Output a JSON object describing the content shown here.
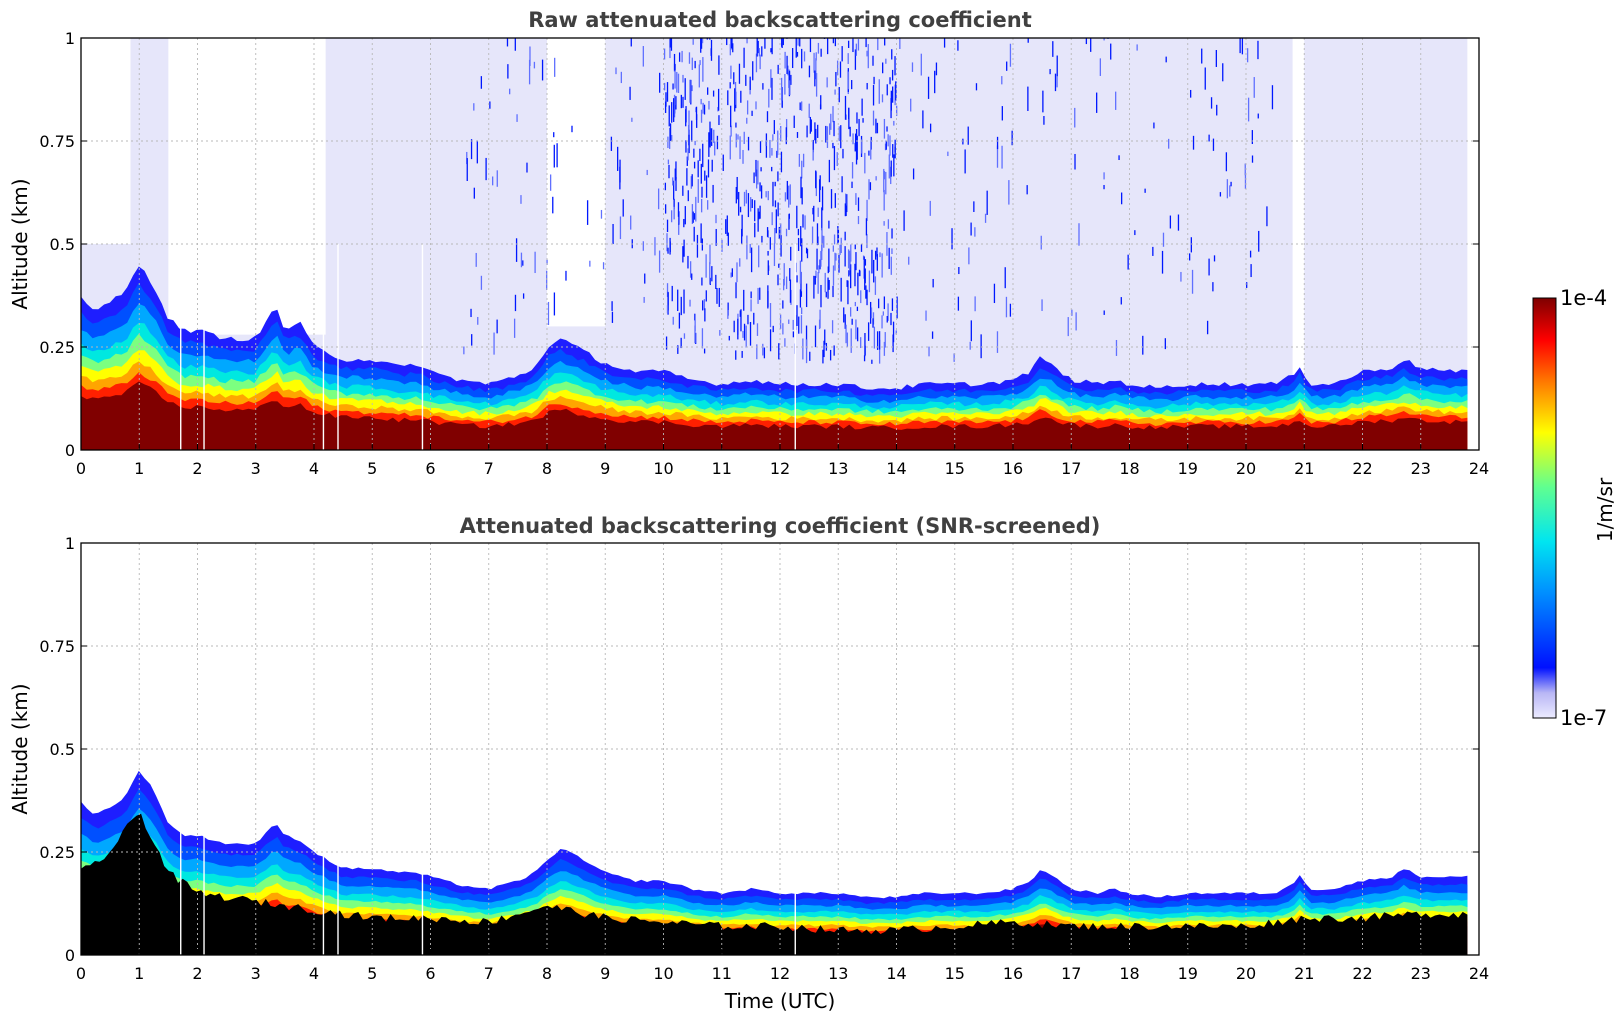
{
  "figure": {
    "colorbar": {
      "label": "1/m/sr",
      "max_label": "1e-4",
      "min_label": "1e-7",
      "scale": "log",
      "colormap": "jet (light lavender low end to dark red high end)"
    }
  },
  "chart_data": [
    {
      "type": "heatmap",
      "title": "Raw attenuated backscattering coefficient",
      "xlabel": "",
      "ylabel": "Altitude (km)",
      "xlim": [
        0,
        24
      ],
      "ylim": [
        0,
        1
      ],
      "x_ticks": [
        0,
        1,
        2,
        3,
        4,
        5,
        6,
        7,
        8,
        9,
        10,
        11,
        12,
        13,
        14,
        15,
        16,
        17,
        18,
        19,
        20,
        21,
        22,
        23,
        24
      ],
      "y_ticks": [
        0,
        0.25,
        0.5,
        0.75,
        1
      ],
      "y_tick_labels": [
        "0",
        "0.25",
        "0.5",
        "0.75",
        "1"
      ],
      "grid": true,
      "data_end_hour": 23.8,
      "boundary_layer_top_km": [
        [
          0,
          0.37
        ],
        [
          0.25,
          0.34
        ],
        [
          0.5,
          0.36
        ],
        [
          0.75,
          0.38
        ],
        [
          1,
          0.45
        ],
        [
          1.25,
          0.4
        ],
        [
          1.5,
          0.32
        ],
        [
          1.75,
          0.29
        ],
        [
          2,
          0.29
        ],
        [
          2.5,
          0.27
        ],
        [
          3,
          0.27
        ],
        [
          3.35,
          0.35
        ],
        [
          3.5,
          0.29
        ],
        [
          3.75,
          0.31
        ],
        [
          4,
          0.25
        ],
        [
          4.5,
          0.22
        ],
        [
          5,
          0.22
        ],
        [
          5.5,
          0.2
        ],
        [
          5.75,
          0.21
        ],
        [
          6,
          0.19
        ],
        [
          6.5,
          0.17
        ],
        [
          7,
          0.16
        ],
        [
          7.5,
          0.18
        ],
        [
          7.8,
          0.2
        ],
        [
          8,
          0.25
        ],
        [
          8.25,
          0.27
        ],
        [
          8.5,
          0.25
        ],
        [
          9,
          0.21
        ],
        [
          9.5,
          0.19
        ],
        [
          10,
          0.19
        ],
        [
          10.5,
          0.17
        ],
        [
          11,
          0.16
        ],
        [
          11.5,
          0.17
        ],
        [
          12,
          0.16
        ],
        [
          12.5,
          0.16
        ],
        [
          13,
          0.16
        ],
        [
          13.5,
          0.15
        ],
        [
          14,
          0.15
        ],
        [
          14.5,
          0.16
        ],
        [
          15,
          0.16
        ],
        [
          15.5,
          0.16
        ],
        [
          16,
          0.17
        ],
        [
          16.3,
          0.19
        ],
        [
          16.5,
          0.23
        ],
        [
          16.7,
          0.2
        ],
        [
          17,
          0.17
        ],
        [
          17.5,
          0.16
        ],
        [
          17.7,
          0.17
        ],
        [
          18,
          0.16
        ],
        [
          18.5,
          0.15
        ],
        [
          19,
          0.16
        ],
        [
          19.5,
          0.16
        ],
        [
          20,
          0.16
        ],
        [
          20.5,
          0.16
        ],
        [
          20.8,
          0.18
        ],
        [
          20.9,
          0.21
        ],
        [
          21.1,
          0.16
        ],
        [
          21.5,
          0.16
        ],
        [
          22,
          0.19
        ],
        [
          22.5,
          0.2
        ],
        [
          22.7,
          0.22
        ],
        [
          23,
          0.2
        ],
        [
          23.5,
          0.19
        ],
        [
          23.8,
          0.19
        ]
      ],
      "noise_region_top_km": 1,
      "notes": "Noise speckle (blue) in upper levels mostly between 10 and 14 UTC; dark red near-surface layer below ~0.1 km"
    },
    {
      "type": "heatmap",
      "title": "Attenuated backscattering coefficient (SNR-screened)",
      "xlabel": "Time (UTC)",
      "ylabel": "Altitude (km)",
      "xlim": [
        0,
        24
      ],
      "ylim": [
        0,
        1
      ],
      "x_ticks": [
        0,
        1,
        2,
        3,
        4,
        5,
        6,
        7,
        8,
        9,
        10,
        11,
        12,
        13,
        14,
        15,
        16,
        17,
        18,
        19,
        20,
        21,
        22,
        23,
        24
      ],
      "y_ticks": [
        0,
        0.25,
        0.5,
        0.75,
        1
      ],
      "y_tick_labels": [
        "0",
        "0.25",
        "0.5",
        "0.75",
        "1"
      ],
      "grid": true,
      "data_end_hour": 23.8,
      "boundary_layer_top_km": [
        [
          0,
          0.37
        ],
        [
          0.25,
          0.34
        ],
        [
          0.5,
          0.36
        ],
        [
          0.75,
          0.38
        ],
        [
          1,
          0.45
        ],
        [
          1.25,
          0.4
        ],
        [
          1.5,
          0.32
        ],
        [
          1.75,
          0.29
        ],
        [
          2,
          0.29
        ],
        [
          2.5,
          0.27
        ],
        [
          3,
          0.27
        ],
        [
          3.35,
          0.32
        ],
        [
          3.5,
          0.29
        ],
        [
          3.75,
          0.28
        ],
        [
          4,
          0.25
        ],
        [
          4.5,
          0.21
        ],
        [
          5,
          0.21
        ],
        [
          5.5,
          0.2
        ],
        [
          5.75,
          0.2
        ],
        [
          6,
          0.19
        ],
        [
          6.5,
          0.17
        ],
        [
          7,
          0.16
        ],
        [
          7.5,
          0.18
        ],
        [
          7.8,
          0.2
        ],
        [
          8,
          0.23
        ],
        [
          8.25,
          0.26
        ],
        [
          8.5,
          0.24
        ],
        [
          9,
          0.2
        ],
        [
          9.5,
          0.18
        ],
        [
          10,
          0.18
        ],
        [
          10.5,
          0.16
        ],
        [
          11,
          0.15
        ],
        [
          11.5,
          0.16
        ],
        [
          12,
          0.15
        ],
        [
          12.5,
          0.15
        ],
        [
          13,
          0.15
        ],
        [
          13.5,
          0.14
        ],
        [
          14,
          0.14
        ],
        [
          14.5,
          0.15
        ],
        [
          15,
          0.15
        ],
        [
          15.5,
          0.15
        ],
        [
          16,
          0.16
        ],
        [
          16.3,
          0.18
        ],
        [
          16.5,
          0.21
        ],
        [
          16.7,
          0.19
        ],
        [
          17,
          0.16
        ],
        [
          17.5,
          0.15
        ],
        [
          17.7,
          0.16
        ],
        [
          18,
          0.15
        ],
        [
          18.5,
          0.14
        ],
        [
          19,
          0.15
        ],
        [
          19.5,
          0.15
        ],
        [
          20,
          0.15
        ],
        [
          20.5,
          0.15
        ],
        [
          20.8,
          0.17
        ],
        [
          20.9,
          0.2
        ],
        [
          21.1,
          0.16
        ],
        [
          21.5,
          0.16
        ],
        [
          22,
          0.18
        ],
        [
          22.5,
          0.19
        ],
        [
          22.7,
          0.21
        ],
        [
          23,
          0.19
        ],
        [
          23.5,
          0.19
        ],
        [
          23.8,
          0.19
        ]
      ],
      "screened_black_top_km": [
        [
          0,
          0.2
        ],
        [
          0.5,
          0.25
        ],
        [
          1,
          0.35
        ],
        [
          1.5,
          0.2
        ],
        [
          2,
          0.15
        ],
        [
          3,
          0.13
        ],
        [
          4,
          0.11
        ],
        [
          5,
          0.09
        ],
        [
          6,
          0.09
        ],
        [
          7,
          0.08
        ],
        [
          8,
          0.12
        ],
        [
          9,
          0.09
        ],
        [
          10,
          0.08
        ],
        [
          11,
          0.07
        ],
        [
          12,
          0.07
        ],
        [
          13,
          0.06
        ],
        [
          14,
          0.06
        ],
        [
          15,
          0.07
        ],
        [
          16,
          0.08
        ],
        [
          17,
          0.07
        ],
        [
          18,
          0.07
        ],
        [
          19,
          0.07
        ],
        [
          20,
          0.07
        ],
        [
          21,
          0.09
        ],
        [
          22,
          0.09
        ],
        [
          23,
          0.1
        ],
        [
          23.8,
          0.1
        ]
      ]
    }
  ]
}
